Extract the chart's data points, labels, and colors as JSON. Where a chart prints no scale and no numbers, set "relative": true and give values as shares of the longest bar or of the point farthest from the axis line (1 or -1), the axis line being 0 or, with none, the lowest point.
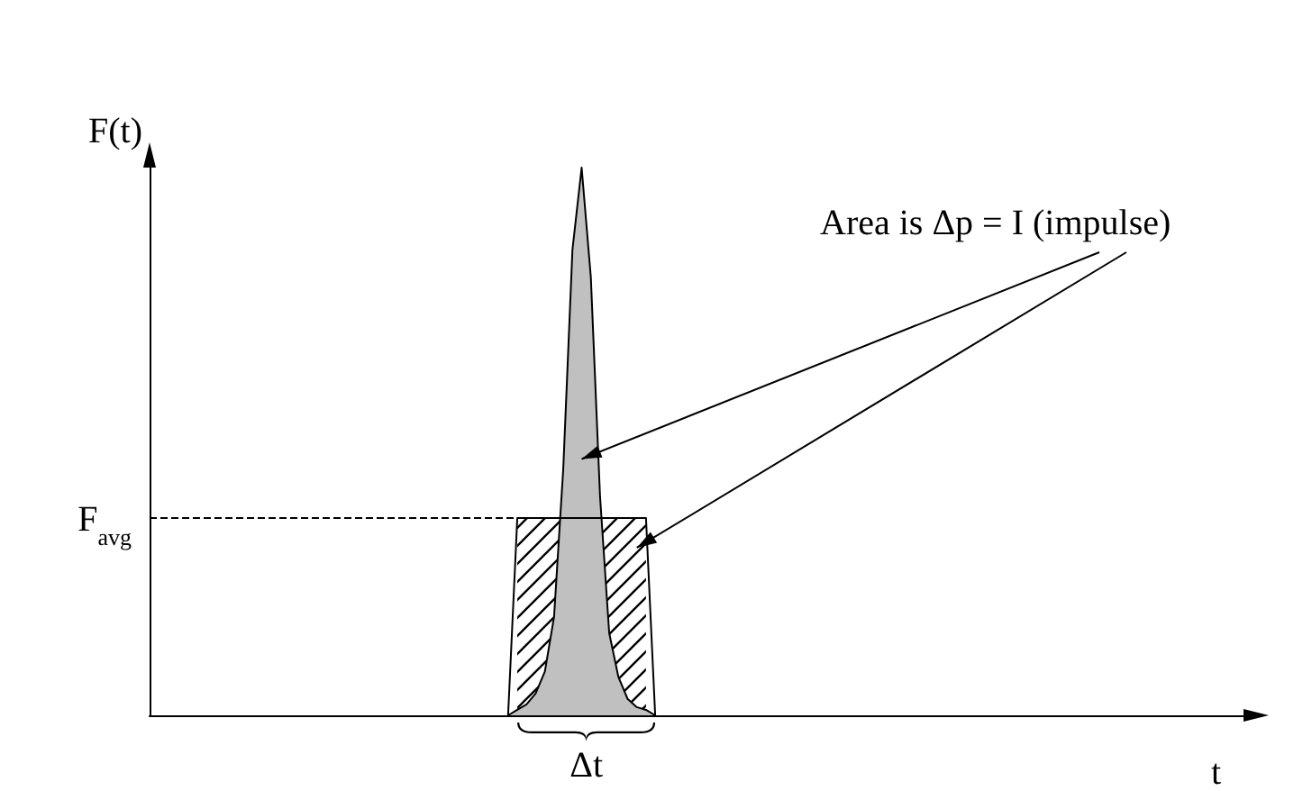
{
  "chart_data": {
    "type": "area",
    "xlabel": "t",
    "ylabel": "F(t)",
    "relative": true,
    "grid": false,
    "marker": "none",
    "categories": [
      null,
      null,
      null,
      null,
      null,
      null,
      null,
      null,
      null,
      null,
      null,
      null,
      null,
      null,
      null,
      null,
      null,
      null,
      null,
      null,
      null,
      null,
      null,
      null,
      null,
      null,
      null,
      null,
      null,
      null,
      null,
      null,
      null,
      null,
      null,
      null,
      null,
      null,
      null,
      null,
      null,
      null,
      null,
      null,
      null,
      null,
      null,
      null,
      null,
      null,
      null,
      null,
      null,
      null,
      null,
      null,
      null,
      null,
      null,
      null,
      null,
      null,
      null,
      null,
      null,
      null,
      null,
      null,
      null,
      null,
      null,
      null,
      null,
      null,
      null,
      null,
      null,
      null,
      null,
      null,
      null,
      null,
      null,
      null,
      null,
      null,
      null,
      null,
      null,
      null,
      null,
      null,
      null,
      null,
      null,
      null,
      null,
      null,
      null,
      null,
      null,
      null,
      null,
      null,
      null,
      null,
      null,
      null,
      null,
      null,
      null,
      null,
      null,
      null,
      null,
      null,
      null,
      null,
      null,
      null
    ],
    "series": [
      {
        "type": "line",
        "color": "#000000",
        "values": [
          null,
          null,
          null,
          null,
          null,
          null,
          null,
          null,
          null,
          null,
          null,
          null,
          null,
          null,
          null,
          null,
          null,
          null,
          null,
          null,
          null,
          null,
          null,
          null,
          null,
          null,
          null,
          null,
          null,
          null,
          null,
          null,
          null,
          null,
          null,
          null,
          null,
          null,
          null,
          0,
          0.36,
          0.36,
          0.36,
          0.36,
          0.36,
          0.36,
          0.36,
          0.36,
          0.36,
          0.36,
          0.36,
          0.36,
          0.36,
          0.36,
          0.36,
          0,
          null,
          null,
          null,
          null,
          null,
          null,
          null,
          null,
          null,
          null,
          null,
          null,
          null,
          null,
          null,
          null,
          null,
          null,
          null,
          null,
          null,
          null,
          null,
          null,
          null,
          null,
          null,
          null,
          null,
          null,
          null,
          null,
          null,
          null,
          null,
          null,
          null,
          null,
          null,
          null,
          null,
          null,
          null,
          null,
          null,
          null,
          null,
          null,
          null,
          null,
          null,
          null,
          null,
          null,
          null,
          null,
          null,
          null,
          null,
          null,
          null,
          null,
          null,
          null
        ]
      },
      {
        "color": "#c0c0c0",
        "values": [
          null,
          null,
          null,
          null,
          null,
          null,
          null,
          null,
          null,
          null,
          null,
          null,
          null,
          null,
          null,
          null,
          null,
          null,
          null,
          null,
          null,
          null,
          null,
          null,
          null,
          null,
          null,
          null,
          null,
          null,
          null,
          null,
          null,
          null,
          null,
          null,
          null,
          null,
          null,
          0,
          0.01,
          0.02,
          0.04,
          0.08,
          0.18,
          0.45,
          0.85,
          1,
          0.8,
          0.4,
          0.15,
          0.07,
          0.03,
          0.015,
          0.01,
          0,
          null,
          null,
          null,
          null,
          null,
          null,
          null,
          null,
          null,
          null,
          null,
          null,
          null,
          null,
          null,
          null,
          null,
          null,
          null,
          null,
          null,
          null,
          null,
          null,
          null,
          null,
          null,
          null,
          null,
          null,
          null,
          null,
          null,
          null,
          null,
          null,
          null,
          null,
          null,
          null,
          null,
          null,
          null,
          null,
          null,
          null,
          null,
          null,
          null,
          null,
          null,
          null,
          null,
          null,
          null,
          null,
          null,
          null,
          null,
          null,
          null,
          null,
          null,
          null
        ]
      }
    ],
    "ref_lines": [
      {
        "axis": "y",
        "value": 0.36,
        "label": "F$_{avg}$",
        "line_style": "dashed"
      }
    ],
    "annotations": [
      "Area is Δp = I (impulse)",
      "Δt"
    ]
  }
}
